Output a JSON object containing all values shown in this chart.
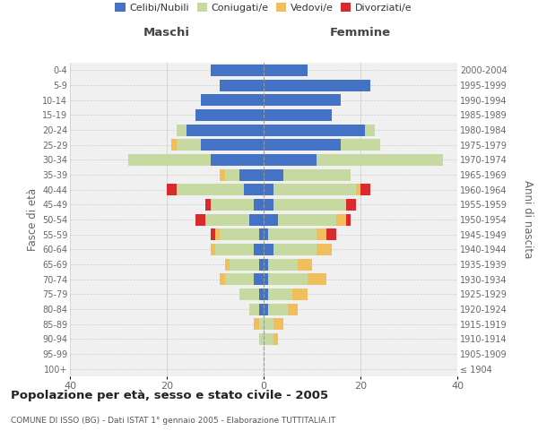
{
  "age_groups": [
    "100+",
    "95-99",
    "90-94",
    "85-89",
    "80-84",
    "75-79",
    "70-74",
    "65-69",
    "60-64",
    "55-59",
    "50-54",
    "45-49",
    "40-44",
    "35-39",
    "30-34",
    "25-29",
    "20-24",
    "15-19",
    "10-14",
    "5-9",
    "0-4"
  ],
  "birth_years": [
    "≤ 1904",
    "1905-1909",
    "1910-1914",
    "1915-1919",
    "1920-1924",
    "1925-1929",
    "1930-1934",
    "1935-1939",
    "1940-1944",
    "1945-1949",
    "1950-1954",
    "1955-1959",
    "1960-1964",
    "1965-1969",
    "1970-1974",
    "1975-1979",
    "1980-1984",
    "1985-1989",
    "1990-1994",
    "1995-1999",
    "2000-2004"
  ],
  "colors": {
    "celibi": "#4472c4",
    "coniugati": "#c5d9a0",
    "vedovi": "#f0be5a",
    "divorziati": "#d92b2b"
  },
  "maschi": {
    "celibi": [
      0,
      0,
      0,
      0,
      1,
      1,
      2,
      1,
      2,
      1,
      3,
      2,
      4,
      5,
      11,
      13,
      16,
      14,
      13,
      9,
      11
    ],
    "coniugati": [
      0,
      0,
      1,
      1,
      2,
      4,
      6,
      6,
      8,
      8,
      9,
      9,
      14,
      3,
      17,
      5,
      2,
      0,
      0,
      0,
      0
    ],
    "vedovi": [
      0,
      0,
      0,
      1,
      0,
      0,
      1,
      1,
      1,
      1,
      0,
      0,
      0,
      1,
      0,
      1,
      0,
      0,
      0,
      0,
      0
    ],
    "divorziati": [
      0,
      0,
      0,
      0,
      0,
      0,
      0,
      0,
      0,
      1,
      2,
      1,
      2,
      0,
      0,
      0,
      0,
      0,
      0,
      0,
      0
    ]
  },
  "femmine": {
    "celibi": [
      0,
      0,
      0,
      0,
      1,
      1,
      1,
      1,
      2,
      1,
      3,
      2,
      2,
      4,
      11,
      16,
      21,
      14,
      16,
      22,
      9
    ],
    "coniugati": [
      0,
      0,
      2,
      2,
      4,
      5,
      8,
      6,
      9,
      10,
      12,
      15,
      17,
      14,
      26,
      8,
      2,
      0,
      0,
      0,
      0
    ],
    "vedovi": [
      0,
      0,
      1,
      2,
      2,
      3,
      4,
      3,
      3,
      2,
      2,
      0,
      1,
      0,
      0,
      0,
      0,
      0,
      0,
      0,
      0
    ],
    "divorziati": [
      0,
      0,
      0,
      0,
      0,
      0,
      0,
      0,
      0,
      2,
      1,
      2,
      2,
      0,
      0,
      0,
      0,
      0,
      0,
      0,
      0
    ]
  },
  "title": "Popolazione per età, sesso e stato civile - 2005",
  "subtitle": "COMUNE DI ISSO (BG) - Dati ISTAT 1° gennaio 2005 - Elaborazione TUTTITALIA.IT",
  "xlabel_left": "Maschi",
  "xlabel_right": "Femmine",
  "ylabel_left": "Fasce di età",
  "ylabel_right": "Anni di nascita",
  "xlim": 40,
  "legend_labels": [
    "Celibi/Nubili",
    "Coniugati/e",
    "Vedovi/e",
    "Divorziati/e"
  ],
  "background_color": "#ffffff",
  "plot_bg_color": "#f0f0f0",
  "grid_color": "#cccccc"
}
